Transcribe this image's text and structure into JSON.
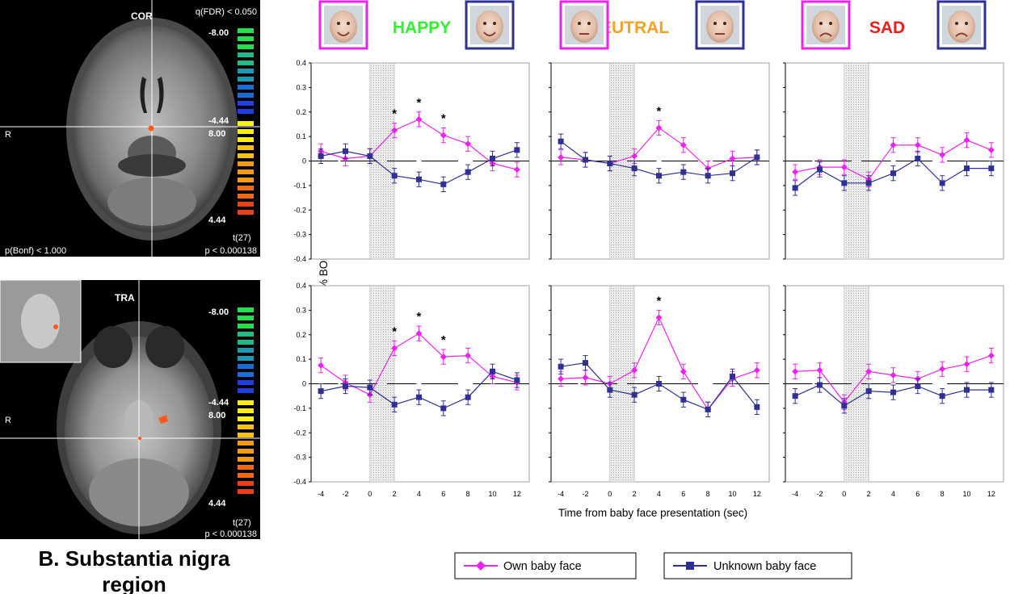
{
  "mri": {
    "coronal": {
      "view_label": "COR",
      "fdr_label": "q(FDR) < 0.050",
      "side_label": "R",
      "bonf_label": "p(Bonf) < 1.000",
      "p_label": "p < 0.000138",
      "stat_label": "t(27)",
      "scale_values": [
        "-8.00",
        "-4.44",
        "8.00",
        "4.44"
      ]
    },
    "transverse": {
      "view_label": "TRA",
      "side_label": "R",
      "p_label": "p < 0.000138",
      "stat_label": "t(27)",
      "scale_values": [
        "-8.00",
        "-4.44",
        "8.00",
        "4.44"
      ]
    },
    "colors": {
      "negative": [
        "#22e04a",
        "#1fb98c",
        "#1a9ab5",
        "#1a6fd6",
        "#1f3fe0"
      ],
      "positive": [
        "#f8ef1a",
        "#f6c21a",
        "#f29a1a",
        "#ee6a1a",
        "#e8401a"
      ],
      "blob": "#ff5a1a"
    }
  },
  "caption": {
    "line1": "B. Substantia nigra",
    "line2": "region"
  },
  "emotions": [
    {
      "label": "HAPPY",
      "color": "#33ee33"
    },
    {
      "label": "NEUTRAL",
      "color": "#f5a21f"
    },
    {
      "label": "SAD",
      "color": "#ee1c1c"
    }
  ],
  "frame_colors": {
    "own": "#ee22ee",
    "unknown": "#2e3192"
  },
  "chart_data": {
    "type": "line",
    "ylabel": "fMRI response (% BOLD signal +/- se)",
    "xlabel": "Time from baby face presentation (sec)",
    "x": [
      -4,
      -2,
      0,
      2,
      4,
      6,
      8,
      10,
      12
    ],
    "xlim": [
      -4.8,
      13
    ],
    "ylim": [
      -0.4,
      0.4
    ],
    "y_ticks": [
      "0.4",
      "0.3",
      "0.2",
      "0.1",
      "0",
      "-0.1",
      "-0.2",
      "-0.3",
      "-0.4"
    ],
    "x_ticks": [
      "-4",
      "-2",
      "0",
      "2",
      "4",
      "6",
      "8",
      "10",
      "12"
    ],
    "stimulus_window": [
      0,
      2
    ],
    "legend": {
      "own": {
        "label": "Own baby face",
        "color": "#ee22ee",
        "marker": "diamond"
      },
      "unknown": {
        "label": "Unknown baby face",
        "color": "#2e3192",
        "marker": "square"
      }
    },
    "panels": [
      {
        "row": 0,
        "col": 0,
        "emotion": "HAPPY",
        "own": [
          0.04,
          0.01,
          0.02,
          0.125,
          0.17,
          0.105,
          0.07,
          -0.01,
          -0.035
        ],
        "unknown": [
          0.02,
          0.04,
          0.02,
          -0.06,
          -0.075,
          -0.095,
          -0.045,
          0.01,
          0.045
        ],
        "significant_x": [
          2,
          4,
          6
        ]
      },
      {
        "row": 0,
        "col": 1,
        "emotion": "NEUTRAL",
        "own": [
          0.015,
          0.005,
          -0.01,
          0.02,
          0.135,
          0.065,
          -0.03,
          0.01,
          0.015
        ],
        "unknown": [
          0.08,
          0.005,
          -0.01,
          -0.03,
          -0.06,
          -0.045,
          -0.06,
          -0.05,
          0.015
        ],
        "significant_x": [
          4
        ]
      },
      {
        "row": 0,
        "col": 2,
        "emotion": "SAD",
        "own": [
          -0.045,
          -0.025,
          -0.025,
          -0.075,
          0.065,
          0.065,
          0.025,
          0.085,
          0.045
        ],
        "unknown": [
          -0.11,
          -0.035,
          -0.09,
          -0.09,
          -0.05,
          0.01,
          -0.09,
          -0.03,
          -0.03
        ],
        "significant_x": []
      },
      {
        "row": 1,
        "col": 0,
        "emotion": "HAPPY",
        "own": [
          0.075,
          0.005,
          -0.045,
          0.145,
          0.205,
          0.11,
          0.115,
          0.03,
          0.005
        ],
        "unknown": [
          -0.03,
          -0.01,
          -0.015,
          -0.085,
          -0.055,
          -0.1,
          -0.055,
          0.05,
          0.015
        ],
        "significant_x": [
          2,
          4,
          6
        ]
      },
      {
        "row": 1,
        "col": 1,
        "emotion": "NEUTRAL",
        "own": [
          0.02,
          0.025,
          0.0,
          0.055,
          0.27,
          0.05,
          -0.105,
          0.02,
          0.055
        ],
        "unknown": [
          0.07,
          0.085,
          -0.025,
          -0.045,
          0.0,
          -0.065,
          -0.105,
          0.03,
          -0.095
        ],
        "significant_x": [
          4
        ]
      },
      {
        "row": 1,
        "col": 2,
        "emotion": "SAD",
        "own": [
          0.05,
          0.055,
          -0.075,
          0.05,
          0.035,
          0.02,
          0.06,
          0.08,
          0.115
        ],
        "unknown": [
          -0.05,
          -0.005,
          -0.09,
          -0.03,
          -0.035,
          -0.01,
          -0.05,
          -0.025,
          -0.025
        ],
        "significant_x": []
      }
    ]
  }
}
